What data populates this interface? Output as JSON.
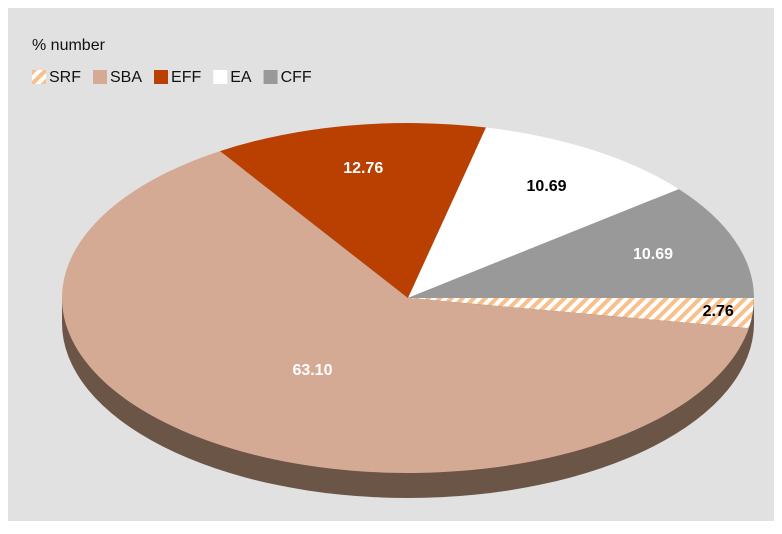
{
  "chart_data": {
    "type": "pie",
    "title": "% number",
    "categories": [
      "SRF",
      "SBA",
      "EFF",
      "EA",
      "CFF"
    ],
    "values": [
      2.76,
      63.1,
      12.76,
      10.69,
      10.69
    ],
    "value_labels": [
      "2.76",
      "63.10",
      "12.76",
      "10.69",
      "10.69"
    ],
    "colors": [
      "#f7c08c",
      "#d5aa95",
      "#b94000",
      "#ffffff",
      "#999999"
    ],
    "hatched": [
      true,
      false,
      false,
      false,
      false
    ],
    "legend": "top-left"
  }
}
